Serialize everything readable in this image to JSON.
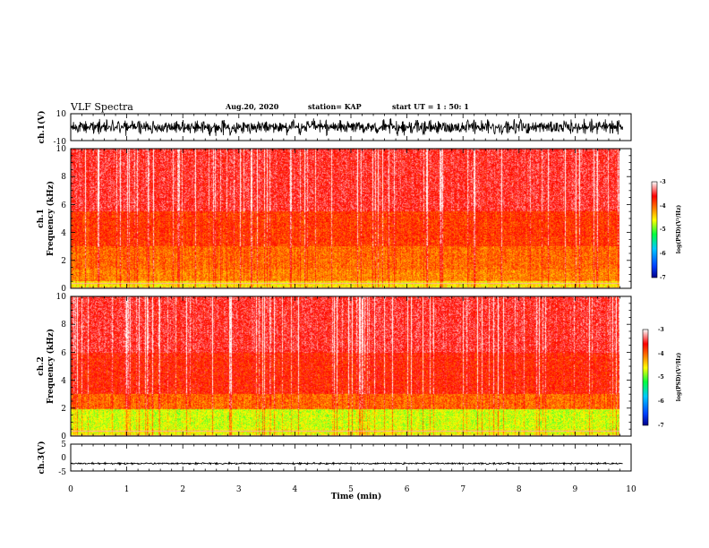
{
  "header": {
    "title": "VLF Spectra",
    "date": "Aug.20, 2020",
    "station": "station= KAP",
    "start": "start  UT =   1 : 50: 1"
  },
  "axes": {
    "xlabel": "Time  (min)",
    "ch1_wave_label": "ch.1(V)",
    "ch1_spec_label": "ch.1",
    "ch2_spec_label": "ch.2",
    "freq_label": "Frequency  (kHz)",
    "ch3_wave_label": "ch.3(V)",
    "colorbar_label": "log(PSD)(V²/Hz)"
  },
  "chart_data": [
    {
      "type": "line",
      "name": "ch.1 waveform",
      "ylabel": "ch.1(V)",
      "xlim": [
        0,
        10
      ],
      "ylim": [
        -10,
        10
      ],
      "yticks": [
        "10",
        "-10"
      ],
      "data_extent_min": [
        0,
        9.85
      ],
      "y_envelope": [
        -7,
        7
      ]
    },
    {
      "type": "heatmap",
      "name": "ch.1 spectrogram",
      "ylabel": "Frequency  (kHz)",
      "xlim": [
        0,
        10
      ],
      "ylim": [
        0,
        10
      ],
      "yticks": [
        "0",
        "2",
        "4",
        "6",
        "8",
        "10"
      ],
      "colorbar": {
        "ticks": [
          "-3",
          "-4",
          "-5",
          "-6",
          "-7"
        ],
        "range": [
          -7,
          -3
        ],
        "label": "log(PSD)(V²/Hz)"
      },
      "bands_khz_logpsd": [
        {
          "f": [
            0,
            0.5
          ],
          "level": -4.5
        },
        {
          "f": [
            0.5,
            1.3
          ],
          "level": -4.1
        },
        {
          "f": [
            1.3,
            3.0
          ],
          "level": -4.0
        },
        {
          "f": [
            3.0,
            5.5
          ],
          "level": -3.8
        },
        {
          "f": [
            5.5,
            10
          ],
          "level": -3.5
        }
      ]
    },
    {
      "type": "heatmap",
      "name": "ch.2 spectrogram",
      "ylabel": "Frequency  (kHz)",
      "xlim": [
        0,
        10
      ],
      "ylim": [
        0,
        10
      ],
      "yticks": [
        "0",
        "2",
        "4",
        "6",
        "8",
        "10"
      ],
      "colorbar": {
        "ticks": [
          "-3",
          "-4",
          "-5",
          "-6",
          "-7"
        ],
        "range": [
          -7,
          -3
        ],
        "label": "log(PSD)(V²/Hz)"
      },
      "bands_khz_logpsd": [
        {
          "f": [
            0,
            0.5
          ],
          "level": -4.6
        },
        {
          "f": [
            0.5,
            1.9
          ],
          "level": -4.7
        },
        {
          "f": [
            1.9,
            3.0
          ],
          "level": -4.0
        },
        {
          "f": [
            3.0,
            6.0
          ],
          "level": -3.7
        },
        {
          "f": [
            6.0,
            10
          ],
          "level": -3.5
        }
      ]
    },
    {
      "type": "line",
      "name": "ch.3 waveform",
      "ylabel": "ch.3(V)",
      "xlim": [
        0,
        10
      ],
      "ylim": [
        -5,
        5
      ],
      "yticks": [
        "5",
        "0",
        "-5"
      ],
      "data_extent_min": [
        0,
        9.85
      ],
      "y_envelope": [
        -0.4,
        0.4
      ],
      "y_offset": -2.2
    }
  ],
  "xticks": [
    "0",
    "1",
    "2",
    "3",
    "4",
    "5",
    "6",
    "7",
    "8",
    "9",
    "10"
  ],
  "colors": {
    "colormap": [
      "#00008a",
      "#0040ff",
      "#00c8ff",
      "#00ff40",
      "#ffff00",
      "#ff8000",
      "#ff0000",
      "#ffffff"
    ],
    "axis": "#000000"
  }
}
